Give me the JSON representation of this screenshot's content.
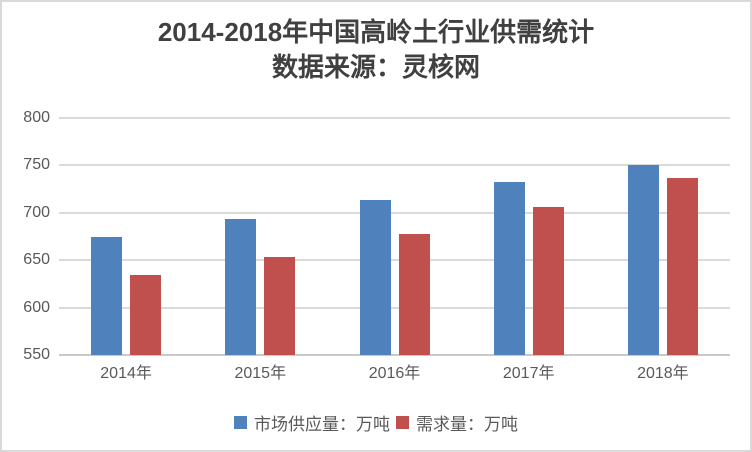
{
  "chart_data": {
    "type": "bar",
    "title": "2014-2018年中国高岭土行业供需统计",
    "subtitle": "数据来源：灵核网",
    "categories": [
      "2014年",
      "2015年",
      "2016年",
      "2017年",
      "2018年"
    ],
    "series": [
      {
        "name": "市场供应量：万吨",
        "color": "#4F81BD",
        "values": [
          675,
          693,
          713,
          732,
          750
        ]
      },
      {
        "name": "需求量：万吨",
        "color": "#C0504D",
        "values": [
          634,
          653,
          678,
          706,
          737
        ]
      }
    ],
    "ylim": [
      550,
      800
    ],
    "yticks": [
      550,
      600,
      650,
      700,
      750,
      800
    ],
    "grid": true,
    "legend_position": "bottom"
  },
  "colors": {
    "supply_bar": "#4F81BD",
    "demand_bar": "#C0504D",
    "gridline": "#DADADA",
    "axis_line": "#C9C9C9",
    "tick_label": "#595959",
    "title_text": "#404040",
    "border": "#D9D9D9",
    "background": "#FFFFFF"
  }
}
